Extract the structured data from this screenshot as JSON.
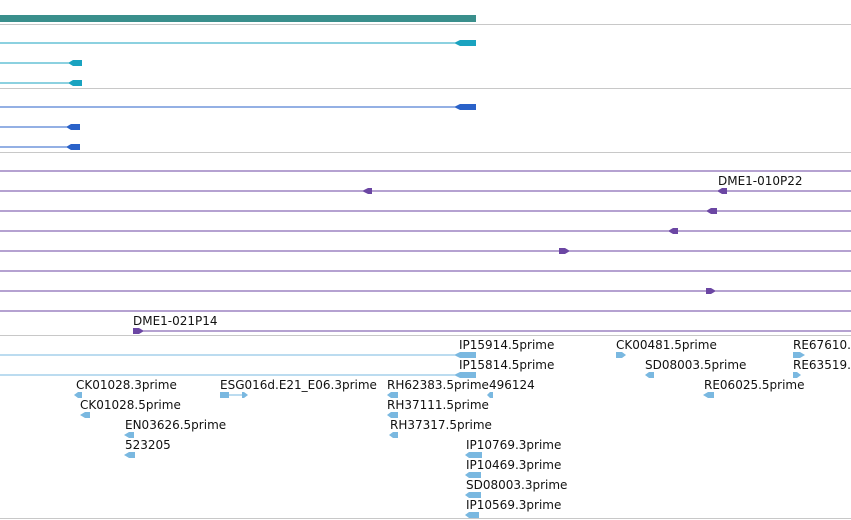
{
  "colors": {
    "gene_bar": "#3a8f8c",
    "transcript_cyan": "#1aa3c0",
    "transcript_blue": "#2a62c9",
    "bac_purple": "#6b46a3",
    "est_light": "#7ab8e0",
    "separator": "#c8c8c8"
  },
  "icons": {
    "arrow_left": "left-arrowhead-icon",
    "arrow_right": "right-arrowhead-icon"
  },
  "bac_labels": {
    "bac1": "DME1-010P22",
    "bac2": "DME1-021P14"
  },
  "est_labels": [
    "IP15914.5prime",
    "IP15814.5prime",
    "CK00481.5prime",
    "SD08003.5prime",
    "RE67610.",
    "RE63519.",
    "RE06025.5prime",
    "CK01028.3prime",
    "CK01028.5prime",
    "EN03626.5prime",
    "523205",
    "ESG016d.E21_E06.3prime",
    "RH62383.5prime",
    "496124",
    "RH37111.5prime",
    "RH37317.5prime",
    "IP10769.3prime",
    "IP10469.3prime",
    "SD08003.3prime",
    "IP10569.3prime"
  ]
}
